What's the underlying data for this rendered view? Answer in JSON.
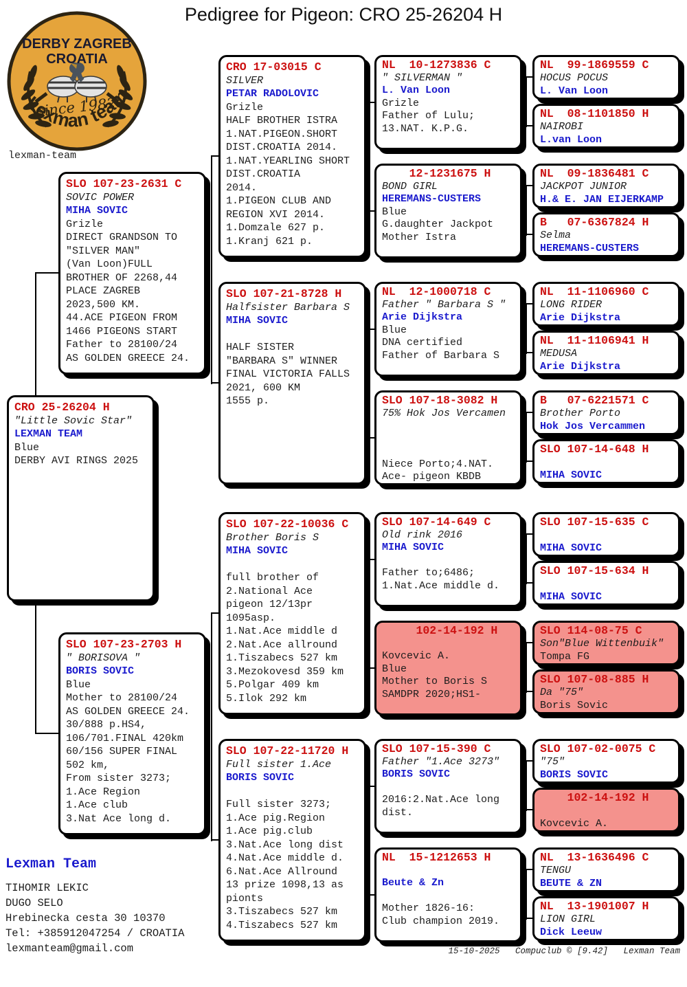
{
  "title": "Pedigree for Pigeon: CRO 25-26204 H",
  "logo": {
    "club_line1": "DERBY ZAGREB",
    "club_line2": "CROATIA",
    "since": "since 1982",
    "team_curved": "Lexman team",
    "caption": "lexman-team"
  },
  "colors": {
    "ring_red": "#cc1111",
    "fancier_blue": "#1a1acd",
    "highlight_pink": "#f4928d",
    "logo_gold": "#e5a43b"
  },
  "boxes": {
    "subject": {
      "ring": "CRO 25-26204 H",
      "name": "\"Little Sovic Star\"",
      "fancier": "LEXMAN TEAM",
      "body": [
        "Blue",
        "DERBY AVI RINGS 2025"
      ]
    },
    "sire": {
      "ring": "SLO 107-23-2631 C",
      "name": "SOVIC POWER",
      "fancier": "MIHA SOVIC",
      "body": [
        "Grizle",
        "DIRECT GRANDSON TO",
        "\"SILVER MAN\"",
        "(Van Loon)FULL",
        "BROTHER OF 2268,44",
        "PLACE ZAGREB",
        "2023,500 KM.",
        "44.ACE PIGEON FROM",
        "1466 PIGEONS START",
        "Father to 28100/24",
        "AS GOLDEN GREECE 24."
      ]
    },
    "dam": {
      "ring": "SLO 107-23-2703 H",
      "name": "\" BORISOVA \"",
      "fancier": "BORIS SOVIC",
      "body": [
        "Blue",
        "Mother to 28100/24",
        "AS GOLDEN GREECE 24.",
        "30/888 p.HS4,",
        "106/701.FINAL 420km",
        "60/156 SUPER FINAL",
        "502 km,",
        "From sister 3273;",
        "1.Ace Region",
        "1.Ace club",
        "3.Nat Ace long d."
      ]
    },
    "ff": {
      "ring": "CRO 17-03015 C",
      "name": "SILVER",
      "fancier": "PETAR RADOLOVIC",
      "body": [
        "Grizle",
        "HALF BROTHER ISTRA",
        "1.NAT.PIGEON.SHORT",
        "DIST.CROATIA 2014.",
        "1.NAT.YEARLING SHORT",
        "DIST.CROATIA",
        "2014.",
        "1.PIGEON CLUB AND",
        "REGION XVI 2014.",
        "1.Domzale 627 p.",
        "1.Kranj 621 p."
      ]
    },
    "fm": {
      "ring": "SLO 107-21-8728 H",
      "name": "Halfsister Barbara S",
      "fancier": "MIHA SOVIC",
      "body": [
        "",
        "HALF SISTER",
        "\"BARBARA S\" WINNER",
        "FINAL VICTORIA FALLS",
        "2021, 600 KM",
        "1555 p."
      ]
    },
    "mf": {
      "ring": "SLO 107-22-10036 C",
      "name": "Brother Boris S",
      "fancier": "MIHA SOVIC",
      "body": [
        "",
        "full brother of",
        "2.National Ace",
        "pigeon 12/13pr",
        "1095asp.",
        "1.Nat.Ace middle d",
        "2.Nat.Ace allround",
        "1.Tiszabecs 527 km",
        "3.Mezokovesd 359 km",
        "5.Polgar 409 km",
        "5.Ilok 292 km"
      ]
    },
    "mm": {
      "ring": "SLO 107-22-11720 H",
      "name": "Full sister 1.Ace",
      "fancier": "BORIS SOVIC",
      "body": [
        "",
        "Full sister 3273;",
        "1.Ace pig.Region",
        "1.Ace pig.club",
        "3.Nat.Ace long dist",
        "4.Nat.Ace middle d.",
        "6.Nat.Ace Allround",
        "13 prize 1098,13 as",
        "pionts",
        "3.Tiszabecs 527 km",
        "4.Tiszabecs 527 km"
      ]
    },
    "fff": {
      "ring": "NL  10-1273836 C",
      "name": "\" SILVERMAN \"",
      "fancier": "L. Van Loon",
      "body": [
        "Grizle",
        "Father of Lulu;",
        "13.NAT. K.P.G."
      ]
    },
    "ffm": {
      "ring": "    12-1231675 H",
      "name": "BOND GIRL",
      "fancier": "HEREMANS-CUSTERS",
      "body": [
        "Blue",
        "G.daughter Jackpot",
        "Mother Istra"
      ]
    },
    "fmf": {
      "ring": "NL  12-1000718 C",
      "name": "Father \" Barbara S \"",
      "fancier": "Arie Dijkstra",
      "body": [
        "Blue",
        "DNA certified",
        "Father of Barbara S"
      ]
    },
    "fmm": {
      "ring": "SLO 107-18-3082 H",
      "name": "75% Hok Jos Vercamen",
      "fancier": "",
      "body": [
        "",
        "",
        "Niece Porto;4.NAT.",
        "Ace- pigeon KBDB"
      ]
    },
    "mff": {
      "ring": "SLO 107-14-649 C",
      "name": "Old rink 2016",
      "fancier": "MIHA SOVIC",
      "body": [
        "",
        "Father to;6486;",
        "1.Nat.Ace middle d."
      ]
    },
    "mfm": {
      "ring": "     102-14-192 H",
      "name": "",
      "fancier": "Kovcevic A.",
      "pink": true,
      "body": [
        "Blue",
        "Mother to Boris S",
        "SAMDPR 2020;HS1-"
      ]
    },
    "mmf": {
      "ring": "SLO 107-15-390 C",
      "name": "Father \"1.Ace 3273\"",
      "fancier": "BORIS SOVIC",
      "body": [
        "",
        "2016:2.Nat.Ace long",
        "dist."
      ]
    },
    "mmm": {
      "ring": "NL  15-1212653 H",
      "name": "",
      "fancier": "Beute & Zn",
      "body": [
        "",
        "Mother 1826-16:",
        "Club champion 2019."
      ]
    },
    "gg1": {
      "ring": "NL  99-1869559 C",
      "name": "HOCUS POCUS",
      "fancier": "L. Van Loon"
    },
    "gg2": {
      "ring": "NL  08-1101850 H",
      "name": "NAIROBI",
      "fancier": "L.van Loon"
    },
    "gg3": {
      "ring": "NL  09-1836481 C",
      "name": "JACKPOT JUNIOR",
      "fancier": "H.& E. JAN EIJERKAMP"
    },
    "gg4": {
      "ring": "B   07-6367824 H",
      "name": "Selma",
      "fancier": "HEREMANS-CUSTERS"
    },
    "gg5": {
      "ring": "NL  11-1106960 C",
      "name": "LONG RIDER",
      "fancier": "Arie Dijkstra"
    },
    "gg6": {
      "ring": "NL  11-1106941 H",
      "name": "MEDUSA",
      "fancier": "Arie Dijkstra"
    },
    "gg7": {
      "ring": "B   07-6221571 C",
      "name": "Brother Porto",
      "fancier": "Hok Jos Vercammen"
    },
    "gg8": {
      "ring": "SLO 107-14-648 H",
      "name": "",
      "fancier": "MIHA SOVIC"
    },
    "gg9": {
      "ring": "SLO 107-15-635 C",
      "name": "",
      "fancier": "MIHA SOVIC"
    },
    "gg10": {
      "ring": "SLO 107-15-634 H",
      "name": "",
      "fancier": "MIHA SOVIC"
    },
    "gg11": {
      "ring": "SLO 114-08-75 C",
      "name": "Son\"Blue Wittenbuik\"",
      "fancier": "Tompa FG",
      "pink": true
    },
    "gg12": {
      "ring": "SLO 107-08-885 H",
      "name": "Da \"75\"",
      "fancier": "Boris Sovic",
      "pink": true
    },
    "gg13": {
      "ring": "SLO 107-02-0075 C",
      "name": "\"75\"",
      "fancier": "BORIS SOVIC"
    },
    "gg14": {
      "ring": "    102-14-192 H",
      "name": "",
      "fancier": "Kovcevic A.",
      "pink": true
    },
    "gg15": {
      "ring": "NL  13-1636496 C",
      "name": "TENGU",
      "fancier": "BEUTE & ZN"
    },
    "gg16": {
      "ring": "NL  13-1901007 H",
      "name": "LION GIRL",
      "fancier": "Dick Leeuw"
    }
  },
  "contact": {
    "team_name": "Lexman Team",
    "lines": [
      "TIHOMIR LEKIC",
      "DUGO SELO",
      "Hrebinecka cesta 30 10370",
      "Tel: +385912047254 / CROATIA",
      "lexmanteam@gmail.com"
    ]
  },
  "print_footer": "15-10-2025   Compuclub © [9.42]   Lexman Team"
}
